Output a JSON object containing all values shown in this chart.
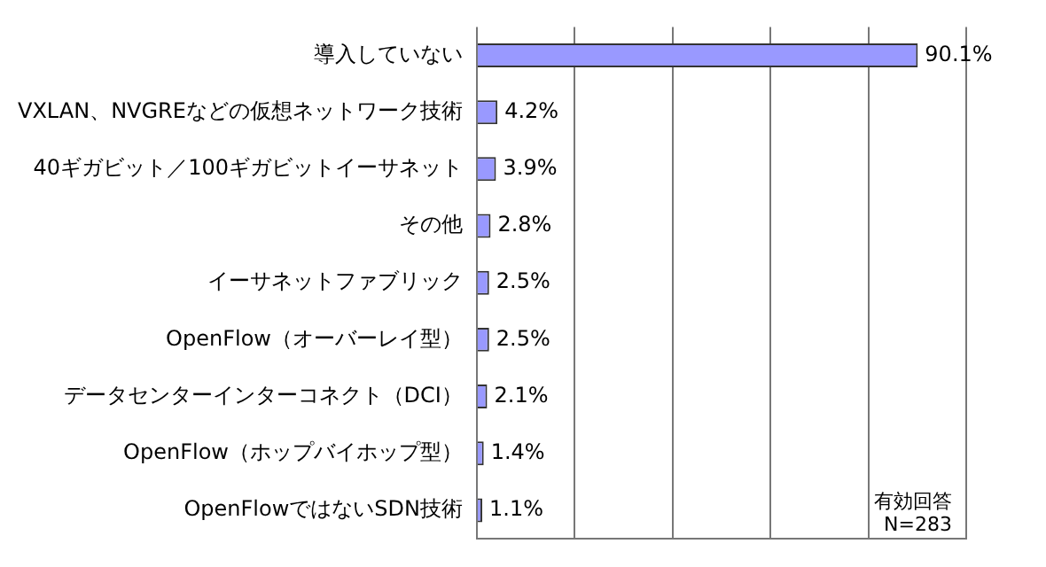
{
  "chart_data": {
    "type": "bar",
    "orientation": "horizontal",
    "categories": [
      "導入していない",
      "VXLAN、NVGREなどの仮想ネットワーク技術",
      "40ギガビット／100ギガビットイーサネット",
      "その他",
      "イーサネットファブリック",
      "OpenFlow（オーバーレイ型）",
      "データセンターインターコネクト（DCI）",
      "OpenFlow（ホップバイホップ型）",
      "OpenFlowではないSDN技術"
    ],
    "values": [
      90.1,
      4.2,
      3.9,
      2.8,
      2.5,
      2.5,
      2.1,
      1.4,
      1.1
    ],
    "value_labels": [
      "90.1%",
      "4.2%",
      "3.9%",
      "2.8%",
      "2.5%",
      "2.5%",
      "2.1%",
      "1.4%",
      "1.1%"
    ],
    "color": "#9999ff",
    "xlim": [
      0,
      100
    ],
    "xticks": [
      {
        "value": 0,
        "label": null
      },
      {
        "value": 20,
        "label": null
      },
      {
        "value": 40,
        "label": null
      },
      {
        "value": 60,
        "label": null
      },
      {
        "value": 80,
        "label": null
      },
      {
        "value": 100,
        "label": null
      }
    ],
    "grid": "x",
    "tick_labels": "y",
    "legend": false,
    "annotations": [
      "有効回答\nN=283"
    ]
  }
}
